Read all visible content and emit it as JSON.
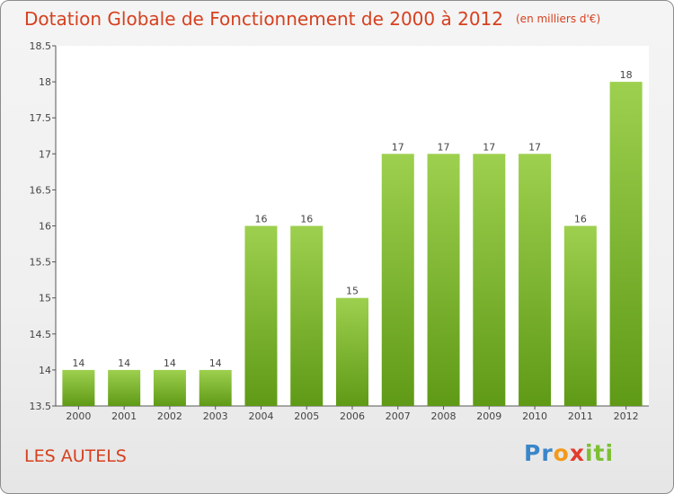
{
  "title": "Dotation Globale de Fonctionnement de 2000 à 2012",
  "subtitle": "(en milliers d'€)",
  "commune": "LES AUTELS",
  "logo": {
    "p1": "Pr",
    "p2": "o",
    "p3": "x",
    "p4": "iti"
  },
  "colors": {
    "title": "#d6401f",
    "bar_top": "#9dd04e",
    "bar_bottom": "#5f9a16",
    "axis": "#555555",
    "grid": "#d8d8d8"
  },
  "chart_data": {
    "type": "bar",
    "title": "Dotation Globale de Fonctionnement de 2000 à 2012",
    "subtitle": "(en milliers d'€)",
    "xlabel": "",
    "ylabel": "",
    "categories": [
      "2000",
      "2001",
      "2002",
      "2003",
      "2004",
      "2005",
      "2006",
      "2007",
      "2008",
      "2009",
      "2010",
      "2011",
      "2012"
    ],
    "values": [
      14,
      14,
      14,
      14,
      16,
      16,
      15,
      17,
      17,
      17,
      17,
      16,
      18
    ],
    "ylim": [
      13.5,
      18.5
    ],
    "yticks": [
      "13.5",
      "14",
      "14.5",
      "15",
      "15.5",
      "16",
      "16.5",
      "17",
      "17.5",
      "18",
      "18.5"
    ],
    "grid": false,
    "legend": "none"
  }
}
